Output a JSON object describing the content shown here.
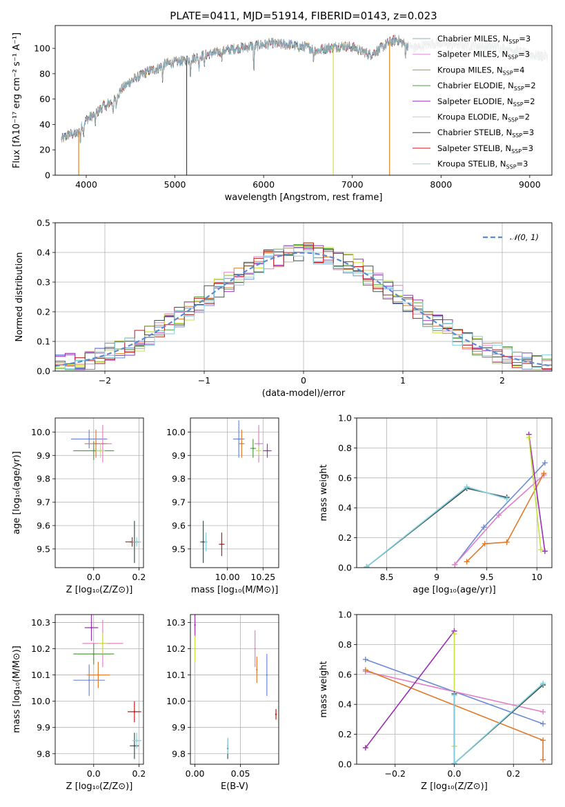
{
  "figure": {
    "title": "PLATE=0411, MJD=51914, FIBERID=0143, z=0.023",
    "colors": {
      "chabrier_miles": "#8fa8b2",
      "salpeter_miles": "#e08ad8",
      "kroupa_miles": "#d9861c",
      "chabrier_elodie": "#4f9a4a",
      "salpeter_elodie": "#9030b8",
      "kroupa_elodie": "#d8e040",
      "chabrier_stelib": "#444444",
      "salpeter_stelib": "#c01818",
      "kroupa_stelib": "#88d8ec",
      "a": "#6a8ad8",
      "b": "#e080c8",
      "c": "#e07a2a",
      "d": "#50a040",
      "e": "#9a30b0",
      "f": "#c8e040",
      "g": "#405050",
      "h": "#c01818",
      "i": "#80d0e0"
    },
    "legend_spectrum": [
      {
        "pre": "Chabrier MILES, N",
        "sub": "SSP",
        "post": "=3",
        "color": "chabrier_miles"
      },
      {
        "pre": "Salpeter MILES, N",
        "sub": "SSP",
        "post": "=3",
        "color": "salpeter_miles"
      },
      {
        "pre": "Kroupa MILES, N",
        "sub": "SSP",
        "post": "=4",
        "color": "kroupa_miles"
      },
      {
        "pre": "Chabrier ELODIE, N",
        "sub": "SSP",
        "post": "=2",
        "color": "chabrier_elodie"
      },
      {
        "pre": "Salpeter ELODIE, N",
        "sub": "SSP",
        "post": "=2",
        "color": "salpeter_elodie"
      },
      {
        "pre": "Kroupa ELODIE, N",
        "sub": "SSP",
        "post": "=2",
        "color": "kroupa_elodie"
      },
      {
        "pre": "Chabrier STELIB, N",
        "sub": "SSP",
        "post": "=3",
        "color": "chabrier_stelib"
      },
      {
        "pre": "Salpeter STELIB, N",
        "sub": "SSP",
        "post": "=3",
        "color": "salpeter_stelib"
      },
      {
        "pre": "Kroupa STELIB, N",
        "sub": "SSP",
        "post": "=3",
        "color": "kroupa_stelib"
      }
    ],
    "legend_normal": "𝒩(0, 1)"
  },
  "chart_data": [
    {
      "id": "spectrum",
      "type": "line",
      "xlabel": "wavelength [Angstrom, rest frame]",
      "ylabel": "Flux [fλ10⁻¹⁷ erg cm⁻² s⁻¹ A⁻¹]",
      "xlim": [
        3650,
        9250
      ],
      "ylim": [
        0,
        118
      ],
      "xticks": [
        4000,
        5000,
        6000,
        7000,
        8000,
        9000
      ],
      "yticks": [
        0,
        20,
        40,
        60,
        80,
        100
      ],
      "grid": false,
      "continuum": [
        [
          3720,
          28
        ],
        [
          3800,
          32
        ],
        [
          3900,
          33
        ],
        [
          4000,
          44
        ],
        [
          4100,
          48
        ],
        [
          4200,
          55
        ],
        [
          4300,
          58
        ],
        [
          4400,
          68
        ],
        [
          4500,
          74
        ],
        [
          4600,
          78
        ],
        [
          4700,
          82
        ],
        [
          4800,
          84
        ],
        [
          4900,
          88
        ],
        [
          5000,
          89
        ],
        [
          5100,
          90
        ],
        [
          5200,
          92
        ],
        [
          5300,
          94
        ],
        [
          5400,
          96
        ],
        [
          5500,
          97
        ],
        [
          5600,
          99
        ],
        [
          5700,
          100
        ],
        [
          5800,
          101
        ],
        [
          5900,
          102
        ],
        [
          6000,
          103
        ],
        [
          6100,
          104
        ],
        [
          6200,
          103
        ],
        [
          6300,
          103
        ],
        [
          6400,
          101
        ],
        [
          6500,
          101
        ],
        [
          6600,
          98
        ],
        [
          6700,
          100
        ],
        [
          6800,
          101
        ],
        [
          6900,
          102
        ],
        [
          7000,
          101
        ],
        [
          7100,
          98
        ],
        [
          7200,
          95
        ],
        [
          7300,
          99
        ],
        [
          7400,
          104
        ],
        [
          7500,
          107
        ],
        [
          7600,
          103
        ],
        [
          7700,
          100
        ],
        [
          7800,
          102
        ],
        [
          7900,
          104
        ],
        [
          8000,
          104
        ],
        [
          8100,
          103
        ],
        [
          8200,
          103
        ],
        [
          8300,
          102
        ],
        [
          8400,
          102
        ],
        [
          8500,
          101
        ],
        [
          8600,
          101
        ],
        [
          8700,
          100
        ],
        [
          8800,
          99
        ],
        [
          8900,
          97
        ],
        [
          9000,
          95
        ],
        [
          9100,
          94
        ],
        [
          9200,
          94
        ]
      ],
      "absorption_lines": [
        [
          3934,
          10
        ],
        [
          3969,
          8
        ],
        [
          4101,
          8
        ],
        [
          4227,
          6
        ],
        [
          4304,
          12
        ],
        [
          4340,
          9
        ],
        [
          4861,
          10
        ],
        [
          5175,
          12
        ],
        [
          5270,
          8
        ],
        [
          5335,
          8
        ],
        [
          5528,
          5
        ],
        [
          5890,
          20
        ],
        [
          6563,
          8
        ],
        [
          7600,
          8
        ]
      ],
      "spikes": [
        {
          "x": 5132,
          "series": "chabrier_stelib"
        },
        {
          "x": 6785,
          "series": "kroupa_elodie"
        },
        {
          "x": 7420,
          "series": "kroupa_miles"
        },
        {
          "x": 3915,
          "series": "kroupa_miles"
        }
      ],
      "series_drawn": [
        "kroupa_miles",
        "salpeter_miles",
        "chabrier_elodie",
        "salpeter_elodie",
        "kroupa_elodie",
        "chabrier_stelib",
        "salpeter_stelib",
        "kroupa_stelib",
        "chabrier_miles"
      ]
    },
    {
      "id": "residuals",
      "type": "step",
      "xlabel": "(data-model)/error",
      "ylabel": "Normed distribution",
      "xlim": [
        -2.5,
        2.5
      ],
      "ylim": [
        0,
        0.5
      ],
      "xticks": [
        -2,
        -1,
        0,
        1,
        2
      ],
      "yticks": [
        0.0,
        0.1,
        0.2,
        0.3,
        0.4,
        0.5
      ],
      "xtick_labels": [
        "−2",
        "−1",
        "0",
        "1",
        "2"
      ],
      "grid": true,
      "bin_width": 0.1,
      "histogram_colors": [
        "a",
        "b",
        "c",
        "d",
        "e",
        "f",
        "g",
        "h",
        "i"
      ],
      "normal_sigma": 1
    },
    {
      "id": "age_vs_z",
      "type": "scatter",
      "xlabel": "Z [log₁₀(Z/Z⊙)]",
      "ylabel": "age  [log₁₀(age/yr)]",
      "xlim": [
        -0.17,
        0.22
      ],
      "ylim": [
        9.42,
        10.06
      ],
      "xticks": [
        0.0,
        0.2
      ],
      "yticks": [
        9.5,
        9.6,
        9.7,
        9.8,
        9.9,
        10.0
      ],
      "xtick_labels": [
        "0.0",
        "0.2"
      ],
      "grid": true,
      "points": [
        {
          "x": -0.02,
          "y": 9.97,
          "xe": 0.08,
          "ye": 0.04,
          "c": "a"
        },
        {
          "x": 0.04,
          "y": 9.95,
          "xe": 0.04,
          "ye": 0.08,
          "c": "b"
        },
        {
          "x": 0.01,
          "y": 9.95,
          "xe": 0.05,
          "ye": 0.06,
          "c": "c"
        },
        {
          "x": 0.0,
          "y": 9.92,
          "xe": 0.09,
          "ye": 0.04,
          "c": "d"
        },
        {
          "x": 0.03,
          "y": 9.92,
          "xe": 0.02,
          "ye": 0.03,
          "c": "f"
        },
        {
          "x": 0.18,
          "y": 9.53,
          "xe": 0.02,
          "ye": 0.09,
          "c": "g"
        },
        {
          "x": 0.17,
          "y": 9.53,
          "xe": 0.03,
          "ye": 0.02,
          "c": "h"
        },
        {
          "x": 0.19,
          "y": 9.53,
          "xe": 0.02,
          "ye": 0.02,
          "c": "i"
        }
      ]
    },
    {
      "id": "age_vs_mass",
      "type": "scatter",
      "xlabel": "mass [log₁₀(M/M⊙)]",
      "ylabel": "",
      "xlim": [
        9.74,
        10.36
      ],
      "ylim": [
        9.42,
        10.06
      ],
      "xticks": [
        10.0,
        10.25
      ],
      "yticks": [
        9.5,
        9.6,
        9.7,
        9.8,
        9.9,
        10.0
      ],
      "xtick_labels": [
        "10.00",
        "10.25"
      ],
      "grid": true,
      "points": [
        {
          "x": 10.08,
          "y": 9.97,
          "xe": 0.04,
          "ye": 0.08,
          "c": "a"
        },
        {
          "x": 10.22,
          "y": 9.95,
          "xe": 0.03,
          "ye": 0.08,
          "c": "b"
        },
        {
          "x": 10.1,
          "y": 9.95,
          "xe": 0.02,
          "ye": 0.06,
          "c": "c"
        },
        {
          "x": 10.18,
          "y": 9.93,
          "xe": 0.02,
          "ye": 0.04,
          "c": "d"
        },
        {
          "x": 10.28,
          "y": 9.92,
          "xe": 0.03,
          "ye": 0.03,
          "c": "e"
        },
        {
          "x": 10.22,
          "y": 9.92,
          "xe": 0.02,
          "ye": 0.02,
          "c": "f"
        },
        {
          "x": 9.83,
          "y": 9.53,
          "xe": 0.02,
          "ye": 0.09,
          "c": "g"
        },
        {
          "x": 9.96,
          "y": 9.52,
          "xe": 0.02,
          "ye": 0.05,
          "c": "h"
        },
        {
          "x": 9.85,
          "y": 9.53,
          "xe": 0.01,
          "ye": 0.04,
          "c": "i"
        }
      ]
    },
    {
      "id": "mass_weight_vs_age",
      "type": "line",
      "xlabel": "age  [log₁₀(age/yr)]",
      "ylabel": "mass weight",
      "xlim": [
        8.2,
        10.15
      ],
      "ylim": [
        0.0,
        1.0
      ],
      "xticks": [
        8.5,
        9.0,
        9.5,
        10.0
      ],
      "yticks": [
        0.0,
        0.2,
        0.4,
        0.6,
        0.8,
        1.0
      ],
      "grid": true,
      "series": [
        {
          "c": "a",
          "x": [
            9.18,
            9.47,
            10.08
          ],
          "y": [
            0.02,
            0.27,
            0.7
          ]
        },
        {
          "c": "b",
          "x": [
            9.18,
            9.62,
            10.07
          ],
          "y": [
            0.02,
            0.35,
            0.62
          ]
        },
        {
          "c": "c",
          "x": [
            9.3,
            9.48,
            9.7,
            10.07
          ],
          "y": [
            0.04,
            0.16,
            0.17,
            0.63
          ]
        },
        {
          "c": "e",
          "x": [
            9.92,
            10.08
          ],
          "y": [
            0.89,
            0.11
          ]
        },
        {
          "c": "f",
          "x": [
            9.92,
            10.04
          ],
          "y": [
            0.87,
            0.12
          ]
        },
        {
          "c": "g",
          "x": [
            8.3,
            9.3,
            9.7
          ],
          "y": [
            0.005,
            0.53,
            0.47
          ]
        },
        {
          "c": "i",
          "x": [
            8.3,
            9.3,
            9.7
          ],
          "y": [
            0.005,
            0.54,
            0.46
          ]
        }
      ]
    },
    {
      "id": "mass_vs_z",
      "type": "scatter",
      "xlabel": "Z [log₁₀(Z/Z⊙)]",
      "ylabel": "mass [log₁₀(M/M⊙)]",
      "xlim": [
        -0.17,
        0.22
      ],
      "ylim": [
        9.76,
        10.33
      ],
      "xticks": [
        0.0,
        0.2
      ],
      "yticks": [
        9.8,
        9.9,
        10.0,
        10.1,
        10.2,
        10.3
      ],
      "xtick_labels": [
        "0.0",
        "0.2"
      ],
      "grid": true,
      "points": [
        {
          "x": -0.02,
          "y": 10.08,
          "xe": 0.07,
          "ye": 0.06,
          "c": "a"
        },
        {
          "x": 0.04,
          "y": 10.22,
          "xe": 0.09,
          "ye": 0.09,
          "c": "b"
        },
        {
          "x": 0.02,
          "y": 10.1,
          "xe": 0.05,
          "ye": 0.05,
          "c": "c"
        },
        {
          "x": 0.0,
          "y": 10.18,
          "xe": 0.09,
          "ye": 0.04,
          "c": "d"
        },
        {
          "x": -0.01,
          "y": 10.28,
          "xe": 0.03,
          "ye": 0.05,
          "c": "e"
        },
        {
          "x": 0.04,
          "y": 10.22,
          "xe": 0.02,
          "ye": 0.04,
          "c": "f"
        },
        {
          "x": 0.18,
          "y": 9.83,
          "xe": 0.02,
          "ye": 0.05,
          "c": "g"
        },
        {
          "x": 0.18,
          "y": 9.96,
          "xe": 0.03,
          "ye": 0.04,
          "c": "h"
        },
        {
          "x": 0.19,
          "y": 9.85,
          "xe": 0.02,
          "ye": 0.03,
          "c": "i"
        }
      ]
    },
    {
      "id": "mass_vs_ebv",
      "type": "scatter",
      "xlabel": "E(B-V)",
      "ylabel": "",
      "xlim": [
        -0.005,
        0.092
      ],
      "ylim": [
        9.76,
        10.33
      ],
      "xticks": [
        0.0,
        0.05
      ],
      "yticks": [
        9.8,
        9.9,
        10.0,
        10.1,
        10.2,
        10.3
      ],
      "xtick_labels": [
        "0.00",
        "0.05"
      ],
      "grid": true,
      "points": [
        {
          "x": 0.079,
          "y": 10.1,
          "xe": 0.0,
          "ye": 0.08,
          "c": "a"
        },
        {
          "x": 0.066,
          "y": 10.2,
          "xe": 0.0,
          "ye": 0.07,
          "c": "b"
        },
        {
          "x": 0.068,
          "y": 10.12,
          "xe": 0.0,
          "ye": 0.05,
          "c": "c"
        },
        {
          "x": 0.0,
          "y": 10.29,
          "xe": 0.0,
          "ye": 0.05,
          "c": "e"
        },
        {
          "x": 0.0,
          "y": 10.2,
          "xe": 0.0,
          "ye": 0.05,
          "c": "f"
        },
        {
          "x": 0.036,
          "y": 9.82,
          "xe": 0.0,
          "ye": 0.04,
          "c": "g"
        },
        {
          "x": 0.089,
          "y": 9.95,
          "xe": 0.0,
          "ye": 0.02,
          "c": "h"
        },
        {
          "x": 0.036,
          "y": 9.83,
          "xe": 0.0,
          "ye": 0.03,
          "c": "i"
        }
      ]
    },
    {
      "id": "mass_weight_vs_z",
      "type": "line",
      "xlabel": "Z [log₁₀(Z/Z⊙)]",
      "ylabel": "mass weight",
      "xlim": [
        -0.33,
        0.33
      ],
      "ylim": [
        0.0,
        1.0
      ],
      "xticks": [
        -0.2,
        0.0,
        0.2
      ],
      "yticks": [
        0.0,
        0.2,
        0.4,
        0.6,
        0.8,
        1.0
      ],
      "xtick_labels": [
        "−0.2",
        "0.0",
        "0.2"
      ],
      "grid": true,
      "series": [
        {
          "c": "a",
          "x": [
            -0.3,
            0.3
          ],
          "y": [
            0.7,
            0.27
          ]
        },
        {
          "c": "b",
          "x": [
            -0.3,
            0.3
          ],
          "y": [
            0.62,
            0.35
          ]
        },
        {
          "c": "c",
          "x": [
            -0.3,
            0.3,
            0.3
          ],
          "y": [
            0.63,
            0.16,
            0.03
          ]
        },
        {
          "c": "e",
          "x": [
            -0.3,
            0.0
          ],
          "y": [
            0.11,
            0.89
          ]
        },
        {
          "c": "f",
          "x": [
            0.0,
            0.0
          ],
          "y": [
            0.87,
            0.12
          ]
        },
        {
          "c": "g",
          "x": [
            0.0,
            0.0,
            0.3
          ],
          "y": [
            0.47,
            0.005,
            0.53
          ]
        },
        {
          "c": "i",
          "x": [
            0.0,
            0.0,
            0.3
          ],
          "y": [
            0.46,
            0.005,
            0.54
          ]
        }
      ]
    }
  ]
}
